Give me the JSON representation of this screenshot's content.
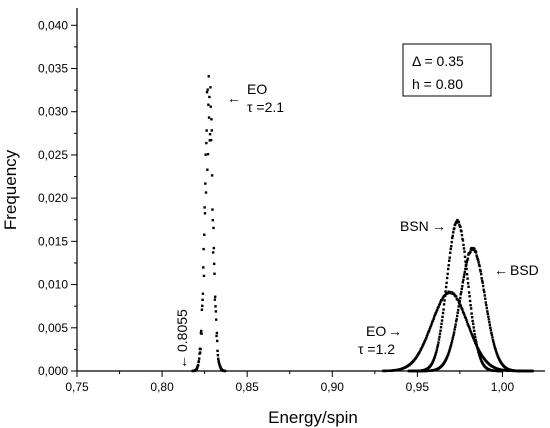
{
  "chart_data": {
    "type": "scatter",
    "title": "",
    "xlabel": "Energy/spin",
    "ylabel": "Frequency",
    "xlim": [
      0.75,
      1.025
    ],
    "ylim": [
      0,
      0.042
    ],
    "x_ticks": [
      "0,75",
      "0,80",
      "0,85",
      "0,90",
      "0,95",
      "1,00"
    ],
    "x_tick_values": [
      0.75,
      0.8,
      0.85,
      0.9,
      0.95,
      1.0
    ],
    "y_ticks": [
      "0,000",
      "0,005",
      "0,010",
      "0,015",
      "0,020",
      "0,025",
      "0,030",
      "0,035",
      "0,040"
    ],
    "y_tick_values": [
      0,
      0.005,
      0.01,
      0.015,
      0.02,
      0.025,
      0.03,
      0.035,
      0.04
    ],
    "grid": false,
    "series": [
      {
        "name": "EO τ=2.1",
        "mean": 0.8275,
        "sigma": 0.0023,
        "peak": 0.0372,
        "range": [
          0.818,
          0.837
        ],
        "noise": 0.35,
        "step": 0.0002
      },
      {
        "name": "EO τ=1.2",
        "mean": 0.969,
        "sigma": 0.0105,
        "peak": 0.0092,
        "range": [
          0.93,
          1.01
        ],
        "noise": 0.02,
        "step": 0.0004
      },
      {
        "name": "BSN",
        "mean": 0.9735,
        "sigma": 0.0061,
        "peak": 0.0175,
        "range": [
          0.945,
          1.0
        ],
        "noise": 0.02,
        "step": 0.0003
      },
      {
        "name": "BSD",
        "mean": 0.9825,
        "sigma": 0.0072,
        "peak": 0.0143,
        "range": [
          0.95,
          1.018
        ],
        "noise": 0.02,
        "step": 0.0003
      }
    ],
    "annotations": [
      {
        "text": "EO",
        "arrow": "←",
        "x": 0.8315,
        "y": 0.0318
      },
      {
        "text": "τ =2.1"
      },
      {
        "text": "BSN",
        "arrow": "→"
      },
      {
        "text": "BSD",
        "arrow": "←"
      },
      {
        "text": "EO",
        "arrow": "→"
      },
      {
        "text": "τ =1.2"
      },
      {
        "text": "0.8055",
        "arrow": "←",
        "x": 0.8055
      }
    ],
    "legend_box": {
      "line1": "Δ  = 0.35",
      "line2": "h = 0.80",
      "placement": "top-right"
    }
  }
}
